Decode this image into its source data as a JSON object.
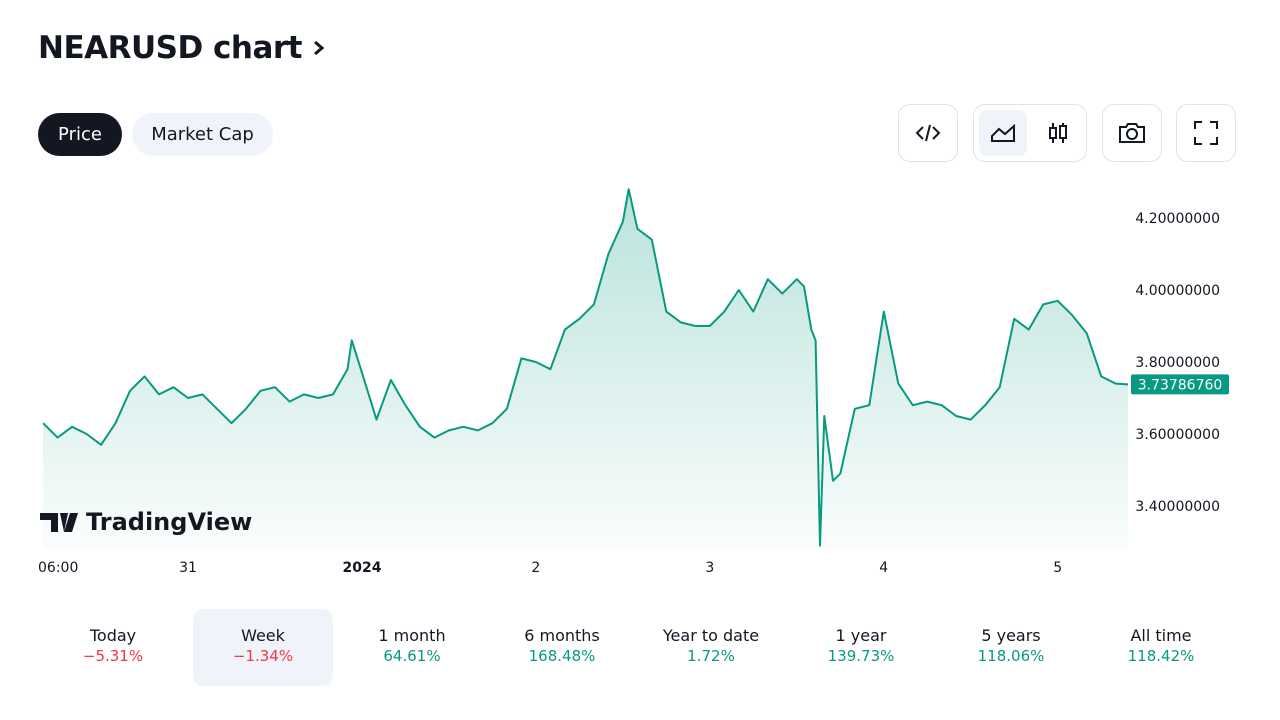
{
  "header": {
    "title": "NEARUSD chart"
  },
  "tabs": [
    "Price",
    "Market Cap"
  ],
  "chart_data": {
    "type": "line",
    "watermark": "TradingView",
    "last_price_label": "3.73786760",
    "x": [
      -20,
      -18,
      -16,
      -14,
      -12,
      -10,
      -8,
      -6,
      -4,
      -2,
      0,
      2,
      4,
      6,
      8,
      10,
      12,
      14,
      16,
      18,
      20,
      22,
      22.6,
      24,
      26,
      28,
      30,
      32,
      34,
      36,
      38,
      40,
      42,
      44,
      46,
      48,
      50,
      52,
      54,
      56,
      58,
      60,
      60.8,
      62,
      64,
      66,
      68,
      70,
      72,
      74,
      76,
      78,
      80,
      82,
      84,
      85,
      86,
      86.6,
      87.2,
      87.8,
      89,
      90,
      92,
      94,
      96,
      98,
      100,
      102,
      104,
      106,
      108,
      110,
      112,
      114,
      116,
      118,
      120,
      122,
      124,
      126,
      128,
      129.7
    ],
    "series": [
      {
        "name": "NEARUSD",
        "color": "#089981",
        "values": [
          3.63,
          3.59,
          3.62,
          3.6,
          3.57,
          3.63,
          3.72,
          3.76,
          3.71,
          3.73,
          3.7,
          3.71,
          3.67,
          3.63,
          3.67,
          3.72,
          3.73,
          3.69,
          3.71,
          3.7,
          3.71,
          3.78,
          3.86,
          3.77,
          3.64,
          3.75,
          3.68,
          3.62,
          3.59,
          3.61,
          3.62,
          3.61,
          3.63,
          3.67,
          3.81,
          3.8,
          3.78,
          3.89,
          3.92,
          3.96,
          4.1,
          4.19,
          4.28,
          4.17,
          4.14,
          3.94,
          3.91,
          3.9,
          3.9,
          3.94,
          4.0,
          3.94,
          4.03,
          3.99,
          4.03,
          4.01,
          3.89,
          3.86,
          3.29,
          3.65,
          3.47,
          3.49,
          3.67,
          3.68,
          3.94,
          3.74,
          3.68,
          3.69,
          3.68,
          3.65,
          3.64,
          3.68,
          3.73,
          3.92,
          3.89,
          3.96,
          3.97,
          3.93,
          3.88,
          3.76,
          3.74,
          3.7378676
        ]
      }
    ],
    "xlim": [
      -20.7,
      129.7
    ],
    "xticks": [
      {
        "value": -18,
        "label": "06:00"
      },
      {
        "value": 0,
        "label": "31"
      },
      {
        "value": 24,
        "label": "2024"
      },
      {
        "value": 48,
        "label": "2"
      },
      {
        "value": 72,
        "label": "3"
      },
      {
        "value": 96,
        "label": "4"
      },
      {
        "value": 120,
        "label": "5"
      }
    ],
    "ylim": [
      3.28,
      4.31
    ],
    "yticks": [
      {
        "value": 3.4,
        "label": "3.40000000"
      },
      {
        "value": 3.6,
        "label": "3.60000000"
      },
      {
        "value": 3.8,
        "label": "3.80000000"
      },
      {
        "value": 4.0,
        "label": "4.00000000"
      },
      {
        "value": 4.2,
        "label": "4.20000000"
      }
    ]
  },
  "performance": [
    {
      "label": "Today",
      "change": "−5.31%"
    },
    {
      "label": "Week",
      "change": "−1.34%"
    },
    {
      "label": "1 month",
      "change": "64.61%"
    },
    {
      "label": "6 months",
      "change": "168.48%"
    },
    {
      "label": "Year to date",
      "change": "1.72%"
    },
    {
      "label": "1 year",
      "change": "139.73%"
    },
    {
      "label": "5 years",
      "change": "118.06%"
    },
    {
      "label": "All time",
      "change": "118.42%"
    }
  ]
}
